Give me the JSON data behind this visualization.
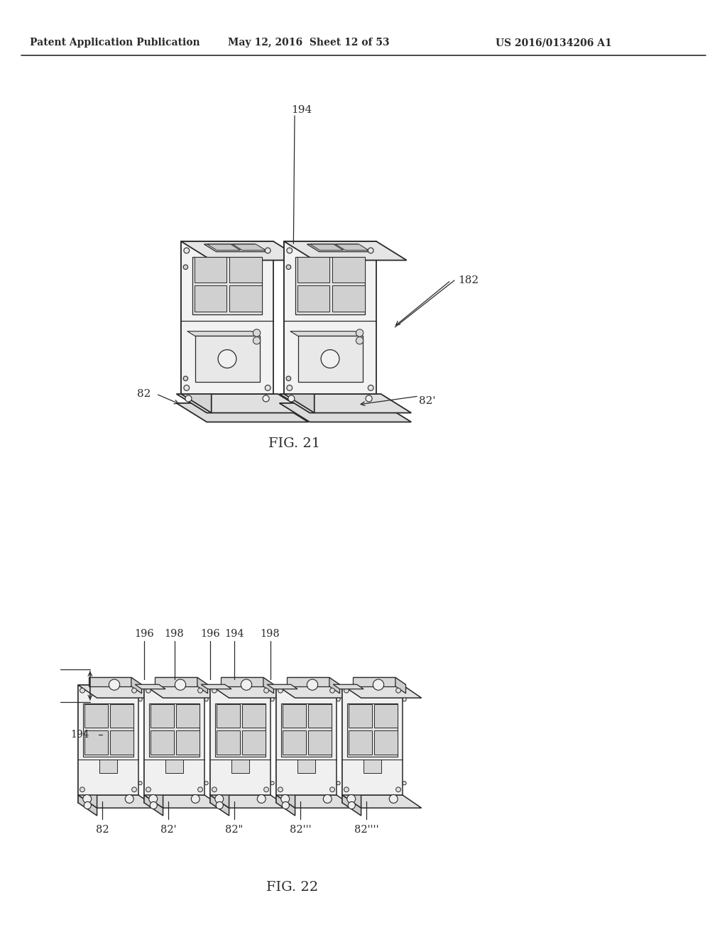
{
  "title_left": "Patent Application Publication",
  "title_mid": "May 12, 2016  Sheet 12 of 53",
  "title_right": "US 2016/0134206 A1",
  "fig21_label": "FIG. 21",
  "fig22_label": "FIG. 22",
  "bg_color": "#ffffff",
  "line_color": "#2a2a2a",
  "face_front": "#f0f0f0",
  "face_left": "#d8d8d8",
  "face_top": "#e4e4e4",
  "face_bottom_ext": "#e8e8e8"
}
